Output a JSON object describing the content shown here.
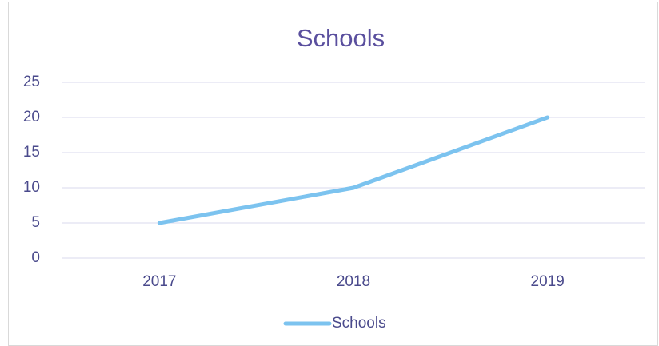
{
  "chart_data": {
    "type": "line",
    "title": "Schools",
    "categories": [
      "2017",
      "2018",
      "2019"
    ],
    "series": [
      {
        "name": "Schools",
        "color": "#7cc3ef",
        "values": [
          5,
          10,
          20
        ]
      }
    ],
    "ylim": [
      0,
      25
    ],
    "yticks": [
      0,
      5,
      10,
      15,
      20,
      25
    ],
    "grid": true,
    "legend": "bottom"
  }
}
